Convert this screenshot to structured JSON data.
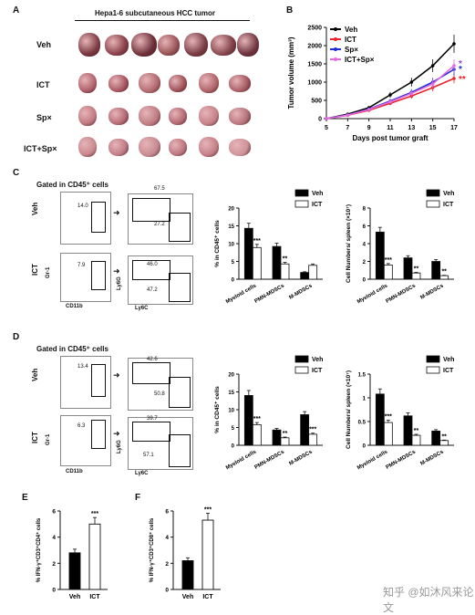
{
  "panels": {
    "A": {
      "label": "A",
      "title": "Hepa1-6 subcutaneous HCC tumor",
      "rows": [
        "Veh",
        "ICT",
        "Sp×",
        "ICT+Sp×"
      ]
    },
    "B": {
      "label": "B",
      "chart_data": {
        "type": "line",
        "xlabel": "Days post tumor graft",
        "ylabel": "Tumor volume (mm³)",
        "x": [
          5,
          7,
          9,
          11,
          13,
          15,
          17
        ],
        "ylim": [
          0,
          2500
        ],
        "yticks": [
          0,
          500,
          1000,
          1500,
          2000,
          2500
        ],
        "legend_position": "top-left",
        "series": [
          {
            "name": "Veh",
            "color": "#000000",
            "values": [
              0,
              120,
              300,
              650,
              1000,
              1450,
              2050
            ]
          },
          {
            "name": "ICT",
            "color": "#e8232a",
            "values": [
              0,
              90,
              230,
              420,
              620,
              850,
              1100
            ]
          },
          {
            "name": "Sp×",
            "color": "#1f2bd6",
            "values": [
              0,
              100,
              260,
              480,
              720,
              1000,
              1350
            ]
          },
          {
            "name": "ICT+Sp×",
            "color": "#e36be0",
            "values": [
              0,
              95,
              250,
              460,
              690,
              950,
              1450
            ]
          }
        ],
        "annotations": [
          {
            "text": "*",
            "color": "#9b3fd1"
          },
          {
            "text": "*",
            "color": "#1f2bd6"
          },
          {
            "text": "**",
            "color": "#e8232a"
          }
        ]
      }
    },
    "C": {
      "label": "C",
      "gate_title": "Gated in CD45⁺ cells",
      "row_labels": [
        "Veh",
        "ICT"
      ],
      "axis_y1": "Gr-1",
      "axis_x1": "CD11b",
      "axis_y2": "Ly6G",
      "axis_x2": "Ly6C",
      "gate_values": [
        "14.0",
        "7.9"
      ],
      "sub_values": [
        [
          "67.5",
          "27.2"
        ],
        [
          "46.0",
          "47.2"
        ]
      ],
      "charts": [
        {
          "type": "bar",
          "ylabel": "% in CD45⁺ cells",
          "ylim": [
            0,
            20
          ],
          "yticks": [
            0,
            5,
            10,
            15,
            20
          ],
          "categories": [
            "Myeloid cells",
            "PMN-MDSCs",
            "M-MDSCs"
          ],
          "series": [
            {
              "name": "Veh",
              "color": "#000000",
              "values": [
                14.3,
                9.2,
                1.9
              ]
            },
            {
              "name": "ICT",
              "color": "#ffffff",
              "values": [
                8.9,
                4.3,
                3.9
              ]
            }
          ],
          "sig": [
            "***",
            "**",
            ""
          ]
        },
        {
          "type": "bar",
          "ylabel": "Cell Numbers/ spleen (×10⁷)",
          "ylim": [
            0,
            8
          ],
          "yticks": [
            0,
            2,
            4,
            6,
            8
          ],
          "categories": [
            "Myeloid cells",
            "PMN-MDSCs",
            "M-MDSCs"
          ],
          "series": [
            {
              "name": "Veh",
              "color": "#000000",
              "values": [
                5.3,
                2.4,
                2.0
              ]
            },
            {
              "name": "ICT",
              "color": "#ffffff",
              "values": [
                1.6,
                0.7,
                0.4
              ]
            }
          ],
          "sig": [
            "***",
            "**",
            "**"
          ]
        }
      ]
    },
    "D": {
      "label": "D",
      "gate_title": "Gated in CD45⁺ cells",
      "row_labels": [
        "Veh",
        "ICT"
      ],
      "axis_y1": "Gr-1",
      "axis_x1": "CD11b",
      "axis_y2": "Ly6G",
      "axis_x2": "Ly6C",
      "gate_values": [
        "13.4",
        "6.3"
      ],
      "sub_values": [
        [
          "42.6",
          "50.8"
        ],
        [
          "39.7",
          "57.1"
        ]
      ],
      "charts": [
        {
          "type": "bar",
          "ylabel": "% in CD45⁺ cells",
          "ylim": [
            0,
            20
          ],
          "yticks": [
            0,
            5,
            10,
            15,
            20
          ],
          "categories": [
            "Myeloid cells",
            "PMN-MDSCs",
            "M-MDSCs"
          ],
          "series": [
            {
              "name": "Veh",
              "color": "#000000",
              "values": [
                14.0,
                4.3,
                8.6
              ]
            },
            {
              "name": "ICT",
              "color": "#ffffff",
              "values": [
                5.8,
                2.1,
                3.1
              ]
            }
          ],
          "sig": [
            "***",
            "**",
            "***"
          ]
        },
        {
          "type": "bar",
          "ylabel": "Cell Numbers/ spleen (×10⁷)",
          "ylim": [
            0,
            1.5
          ],
          "yticks": [
            0.0,
            0.5,
            1.0,
            1.5
          ],
          "categories": [
            "Myeloid cells",
            "PMN-MDSCs",
            "M-MDSCs"
          ],
          "series": [
            {
              "name": "Veh",
              "color": "#000000",
              "values": [
                1.08,
                0.62,
                0.3
              ]
            },
            {
              "name": "ICT",
              "color": "#ffffff",
              "values": [
                0.48,
                0.21,
                0.1
              ]
            }
          ],
          "sig": [
            "***",
            "**",
            "**"
          ]
        }
      ]
    },
    "E": {
      "label": "E",
      "chart_data": {
        "type": "bar",
        "ylabel": "% IFN-γ⁺CD3⁺CD4⁺ cells",
        "ylim": [
          0,
          6
        ],
        "yticks": [
          0,
          2,
          4,
          6
        ],
        "categories": [
          "Veh",
          "ICT"
        ],
        "values": [
          2.8,
          5.0
        ],
        "colors": [
          "#000000",
          "#ffffff"
        ],
        "sig": "***"
      }
    },
    "F": {
      "label": "F",
      "chart_data": {
        "type": "bar",
        "ylabel": "% IFN-γ⁺CD3⁺CD8⁺ cells",
        "ylim": [
          0,
          6
        ],
        "yticks": [
          0,
          2,
          4,
          6
        ],
        "categories": [
          "Veh",
          "ICT"
        ],
        "values": [
          2.2,
          5.3
        ],
        "colors": [
          "#000000",
          "#ffffff"
        ],
        "sig": "***"
      }
    }
  },
  "watermark": "知乎 @如沐风来论文"
}
